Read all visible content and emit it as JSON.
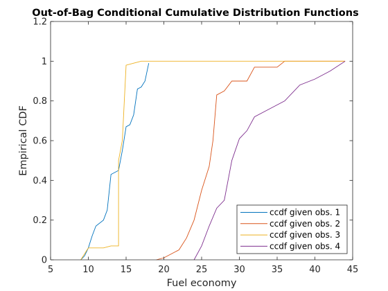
{
  "chart_data": {
    "type": "line",
    "title": "Out-of-Bag Conditional Cumulative Distribution Functions",
    "xlabel": "Fuel economy",
    "ylabel": "Empirical CDF",
    "xlim": [
      5,
      45
    ],
    "ylim": [
      0,
      1.2
    ],
    "xticks": [
      5,
      10,
      15,
      20,
      25,
      30,
      35,
      40,
      45
    ],
    "yticks": [
      0,
      0.2,
      0.4,
      0.6,
      0.8,
      1,
      1.2
    ],
    "xtick_labels": [
      "5",
      "10",
      "15",
      "20",
      "25",
      "30",
      "35",
      "40",
      "45"
    ],
    "ytick_labels": [
      "0",
      "0.2",
      "0.4",
      "0.6",
      "0.8",
      "1",
      "1.2"
    ],
    "grid": false,
    "legend_position": "bottom-right",
    "series": [
      {
        "name": "ccdf given obs. 1",
        "color": "#0072BD",
        "points": [
          [
            9,
            0
          ],
          [
            9.5,
            0.02
          ],
          [
            10,
            0.06
          ],
          [
            10.5,
            0.12
          ],
          [
            11,
            0.17
          ],
          [
            12,
            0.2
          ],
          [
            12.5,
            0.25
          ],
          [
            13,
            0.43
          ],
          [
            14,
            0.45
          ],
          [
            14.5,
            0.55
          ],
          [
            15,
            0.67
          ],
          [
            15.5,
            0.68
          ],
          [
            16,
            0.73
          ],
          [
            16.5,
            0.86
          ],
          [
            17,
            0.87
          ],
          [
            17.5,
            0.9
          ],
          [
            18,
            0.99
          ]
        ]
      },
      {
        "name": "ccdf given obs. 2",
        "color": "#D95319",
        "points": [
          [
            19,
            0
          ],
          [
            20,
            0.01
          ],
          [
            21,
            0.03
          ],
          [
            22,
            0.05
          ],
          [
            23,
            0.11
          ],
          [
            24,
            0.2
          ],
          [
            25,
            0.35
          ],
          [
            26,
            0.47
          ],
          [
            26.5,
            0.6
          ],
          [
            27,
            0.83
          ],
          [
            28,
            0.85
          ],
          [
            29,
            0.9
          ],
          [
            31,
            0.9
          ],
          [
            32,
            0.97
          ],
          [
            35,
            0.97
          ],
          [
            36,
            1
          ],
          [
            44,
            1
          ]
        ]
      },
      {
        "name": "ccdf given obs. 3",
        "color": "#EDB120",
        "points": [
          [
            9,
            0
          ],
          [
            10,
            0.06
          ],
          [
            12,
            0.06
          ],
          [
            13,
            0.07
          ],
          [
            14,
            0.07
          ],
          [
            14,
            0.5
          ],
          [
            14.5,
            0.6
          ],
          [
            15,
            0.98
          ],
          [
            16,
            0.99
          ],
          [
            17,
            1
          ],
          [
            44,
            1
          ]
        ]
      },
      {
        "name": "ccdf given obs. 4",
        "color": "#7E2F8E",
        "points": [
          [
            24,
            0
          ],
          [
            25,
            0.07
          ],
          [
            26,
            0.17
          ],
          [
            27,
            0.26
          ],
          [
            28,
            0.3
          ],
          [
            29,
            0.5
          ],
          [
            30,
            0.61
          ],
          [
            31,
            0.65
          ],
          [
            32,
            0.72
          ],
          [
            34,
            0.76
          ],
          [
            36,
            0.8
          ],
          [
            38,
            0.88
          ],
          [
            40,
            0.91
          ],
          [
            42,
            0.95
          ],
          [
            44,
            1
          ]
        ]
      }
    ]
  }
}
